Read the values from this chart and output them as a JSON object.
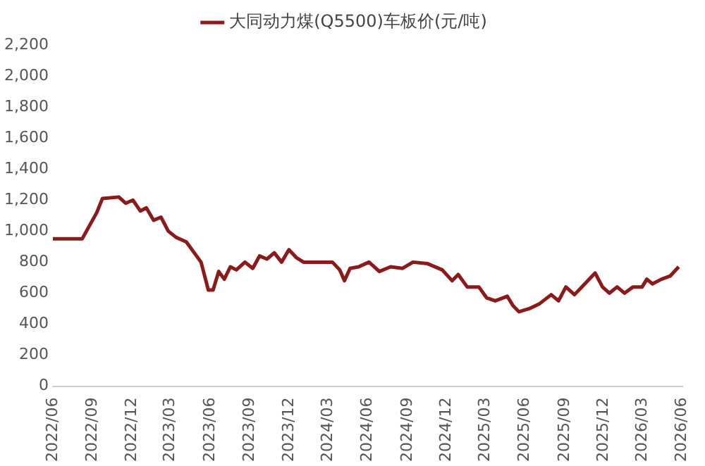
{
  "chart_data": {
    "type": "line",
    "legend": "top",
    "series": [
      {
        "name": "大同动力煤(Q5500)车板价(元/吨)",
        "color": "#8b1a1a",
        "x": [
          "2022-06-01",
          "2022-08-08",
          "2022-09-11",
          "2022-09-24",
          "2022-11-01",
          "2022-11-17",
          "2022-12-04",
          "2022-12-21",
          "2023-01-04",
          "2023-01-21",
          "2023-02-07",
          "2023-02-24",
          "2023-03-14",
          "2023-04-07",
          "2023-05-11",
          "2023-05-28",
          "2023-06-08",
          "2023-06-21",
          "2023-07-04",
          "2023-07-18",
          "2023-08-01",
          "2023-08-21",
          "2023-09-08",
          "2023-09-24",
          "2023-10-11",
          "2023-10-28",
          "2023-11-14",
          "2023-12-01",
          "2023-12-18",
          "2024-01-04",
          "2024-02-07",
          "2024-03-11",
          "2024-03-28",
          "2024-04-08",
          "2024-04-21",
          "2024-05-11",
          "2024-06-04",
          "2024-06-28",
          "2024-07-24",
          "2024-08-21",
          "2024-09-14",
          "2024-10-18",
          "2024-11-21",
          "2024-12-14",
          "2024-12-28",
          "2025-01-18",
          "2025-02-14",
          "2025-03-04",
          "2025-03-24",
          "2025-04-21",
          "2025-05-04",
          "2025-05-18",
          "2025-06-11",
          "2025-07-04",
          "2025-08-01",
          "2025-08-18",
          "2025-09-04",
          "2025-09-24",
          "2025-10-18",
          "2025-11-11",
          "2025-11-28",
          "2025-12-14",
          "2026-01-01",
          "2026-01-18",
          "2026-02-07",
          "2026-02-28",
          "2026-03-11",
          "2026-03-24",
          "2026-04-14",
          "2026-05-04",
          "2026-05-24"
        ],
        "values": [
          950,
          950,
          1120,
          1210,
          1220,
          1180,
          1200,
          1130,
          1150,
          1070,
          1090,
          1000,
          960,
          930,
          800,
          620,
          620,
          740,
          690,
          770,
          750,
          800,
          760,
          840,
          820,
          860,
          800,
          880,
          830,
          800,
          800,
          800,
          750,
          680,
          760,
          770,
          800,
          740,
          770,
          760,
          800,
          790,
          750,
          680,
          720,
          640,
          640,
          570,
          550,
          580,
          520,
          480,
          500,
          530,
          590,
          550,
          640,
          590,
          660,
          730,
          640,
          600,
          640,
          600,
          640,
          640,
          690,
          660,
          690,
          710,
          770
        ]
      }
    ],
    "xlim": [
      "2022-06-01",
      "2026-06-01"
    ],
    "xticks": [
      {
        "value": "2022-06-01",
        "label": "2022/06"
      },
      {
        "value": "2022-09-01",
        "label": "2022/09"
      },
      {
        "value": "2022-12-01",
        "label": "2022/12"
      },
      {
        "value": "2023-03-01",
        "label": "2023/03"
      },
      {
        "value": "2023-06-01",
        "label": "2023/06"
      },
      {
        "value": "2023-09-01",
        "label": "2023/09"
      },
      {
        "value": "2023-12-01",
        "label": "2023/12"
      },
      {
        "value": "2024-03-01",
        "label": "2024/03"
      },
      {
        "value": "2024-06-01",
        "label": "2024/06"
      },
      {
        "value": "2024-09-01",
        "label": "2024/09"
      },
      {
        "value": "2024-12-01",
        "label": "2024/12"
      },
      {
        "value": "2025-03-01",
        "label": "2025/03"
      },
      {
        "value": "2025-06-01",
        "label": "2025/06"
      },
      {
        "value": "2025-09-01",
        "label": "2025/09"
      },
      {
        "value": "2025-12-01",
        "label": "2025/12"
      },
      {
        "value": "2026-03-01",
        "label": "2026/03"
      },
      {
        "value": "2026-06-01",
        "label": "2026/06"
      }
    ],
    "ylim": [
      0,
      2200
    ],
    "yticks": [
      0,
      200,
      400,
      600,
      800,
      {
        "value": 1000,
        "label": "1,000"
      },
      {
        "value": 1200,
        "label": "1,200"
      },
      {
        "value": 1400,
        "label": "1,400"
      },
      {
        "value": 1600,
        "label": "1,600"
      },
      {
        "value": 1800,
        "label": "1,800"
      },
      {
        "value": 2000,
        "label": "2,000"
      },
      {
        "value": 2200,
        "label": "2,200"
      }
    ],
    "grid": false,
    "marker": "none",
    "line_style": "solid"
  }
}
